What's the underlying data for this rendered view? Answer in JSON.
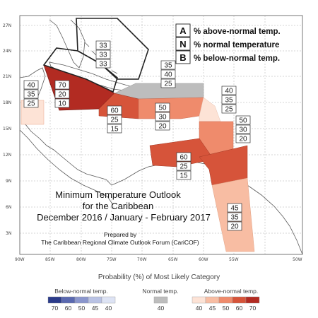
{
  "map": {
    "lat_ticks": [
      "27N",
      "24N",
      "21N",
      "18N",
      "15N",
      "12N",
      "9N",
      "6N",
      "3N"
    ],
    "lon_ticks": [
      "90W",
      "85W",
      "80W",
      "75W",
      "70W",
      "65W",
      "60W",
      "55W",
      "50W"
    ],
    "title_lines": [
      "Minimum Temperature Outlook",
      "for the Caribbean",
      "December 2016 / January - February 2017"
    ],
    "prepared_lines": [
      "Prepared by",
      "The Caribbean Regional Climate Outlook Forum (CariCOF)"
    ]
  },
  "key": {
    "A": {
      "key": "A",
      "desc": "% above-normal temp."
    },
    "N": {
      "key": "N",
      "desc": "% normal temperature"
    },
    "B": {
      "key": "B",
      "desc": "% below-normal temp."
    }
  },
  "regions": [
    {
      "id": "central-america-west",
      "category": "above",
      "probs": [
        "40",
        "35",
        "25"
      ]
    },
    {
      "id": "cuba-west",
      "category": "above",
      "probs": [
        "70",
        "20",
        "10"
      ]
    },
    {
      "id": "bahamas",
      "category": "none",
      "probs": [
        "33",
        "33",
        "33"
      ]
    },
    {
      "id": "hispaniola",
      "category": "normal",
      "probs": [
        "35",
        "40",
        "25"
      ]
    },
    {
      "id": "jamaica",
      "category": "above",
      "probs": [
        "60",
        "25",
        "15"
      ]
    },
    {
      "id": "puerto-rico",
      "category": "above",
      "probs": [
        "50",
        "30",
        "20"
      ]
    },
    {
      "id": "leeward-islands",
      "category": "above",
      "probs": [
        "40",
        "35",
        "25"
      ]
    },
    {
      "id": "windward-islands",
      "category": "above",
      "probs": [
        "50",
        "30",
        "20"
      ]
    },
    {
      "id": "south-america-north",
      "category": "above",
      "probs": [
        "60",
        "25",
        "15"
      ]
    },
    {
      "id": "guianas",
      "category": "above",
      "probs": [
        "45",
        "35",
        "20"
      ]
    }
  ],
  "colorbar": {
    "heading": "Probability (%) of Most Likely Category",
    "below": {
      "label": "Below-normal temp.",
      "values": [
        "70",
        "60",
        "50",
        "45",
        "40"
      ],
      "colors": [
        "#2b3b8a",
        "#5a69b0",
        "#8a96cd",
        "#b9c2e4",
        "#dde3f4"
      ]
    },
    "normal": {
      "label": "Normal temp.",
      "values": [
        "40"
      ],
      "colors": [
        "#bdbdbd"
      ]
    },
    "above": {
      "label": "Above-normal temp.",
      "values": [
        "40",
        "45",
        "50",
        "60",
        "70"
      ],
      "colors": [
        "#fde3d6",
        "#f8bda3",
        "#ef8b6c",
        "#d6543a",
        "#b22b22"
      ]
    }
  }
}
